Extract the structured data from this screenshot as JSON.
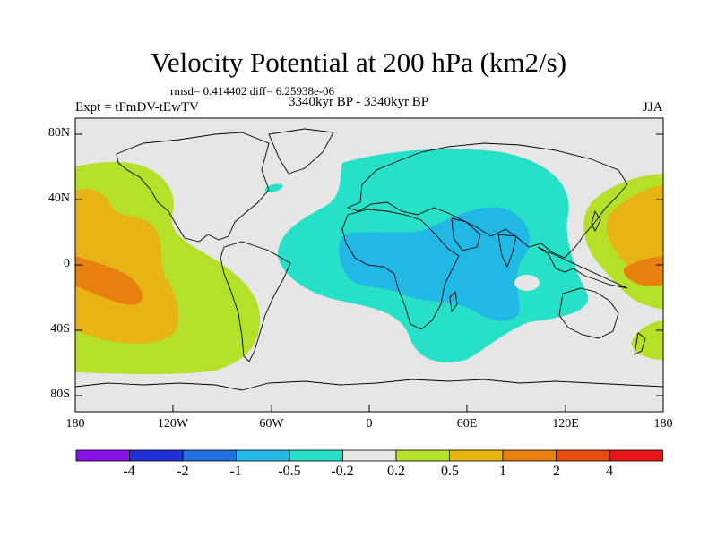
{
  "figure": {
    "title": "Velocity Potential at 200 hPa (km2/s)",
    "stats": "rmsd= 0.414402 diff= 6.25938e-06",
    "experiment": "Expt = tFmDV-tEwTV",
    "period": "3340kyr BP - 3340kyr BP",
    "season": "JJA"
  },
  "axes": {
    "lat_labels": [
      "80N",
      "40N",
      "0",
      "40S",
      "80S"
    ],
    "lon_labels": [
      "180",
      "120W",
      "60W",
      "0",
      "60E",
      "120E",
      "180"
    ]
  },
  "colorbar": {
    "colors": [
      "#8a10e8",
      "#2230d8",
      "#1e6fe0",
      "#22b8e6",
      "#27e0c8",
      "#e6e6e6",
      "#b5e02a",
      "#e8b414",
      "#e88010",
      "#e84a10",
      "#e61616"
    ],
    "labels": [
      "-4",
      "-2",
      "-1",
      "-0.5",
      "-0.2",
      "0.2",
      "0.5",
      "1",
      "2",
      "4"
    ]
  },
  "colors": {
    "background_field": "#e6e6e6",
    "positive_weak": "#b5e02a",
    "positive_mid": "#e8b414",
    "positive_strong": "#e88010",
    "negative_weak": "#27e0c8",
    "negative_mid": "#22b8e6"
  }
}
